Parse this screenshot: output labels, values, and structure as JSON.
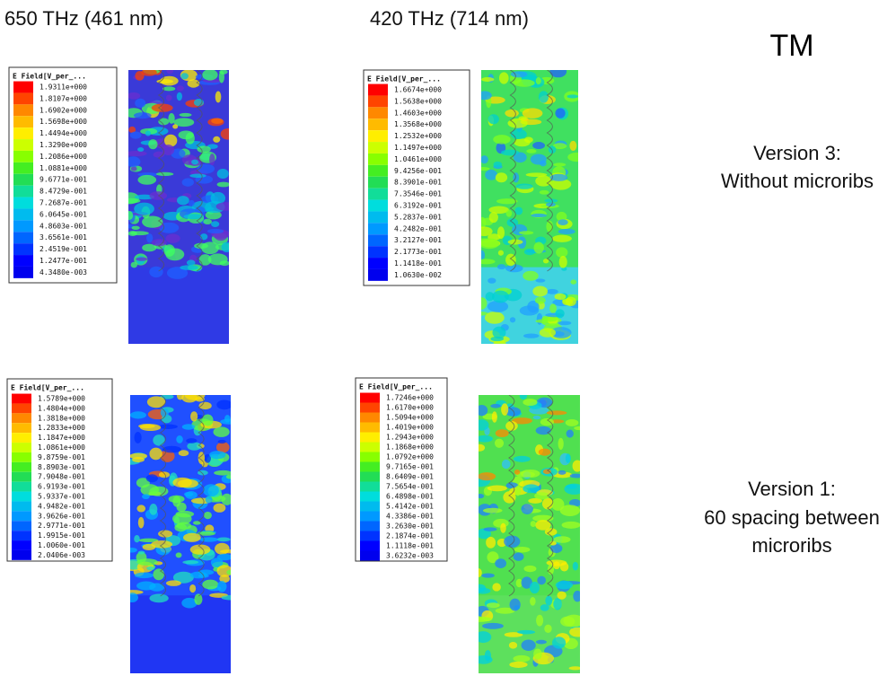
{
  "headers": [
    "650 THz   (461 nm)",
    "420 THz  (714 nm)"
  ],
  "mode": "TM",
  "versions": [
    {
      "lines": [
        "Version 3:",
        "Without microribs"
      ]
    },
    {
      "lines": [
        "Version 1:",
        "60 spacing between",
        "microribs"
      ]
    }
  ],
  "legends": [
    {
      "title": "E Field[V_per_...",
      "values": [
        "1.9311e+000",
        "1.8107e+000",
        "1.6902e+000",
        "1.5698e+000",
        "1.4494e+000",
        "1.3290e+000",
        "1.2086e+000",
        "1.0881e+000",
        "9.6771e-001",
        "8.4729e-001",
        "7.2687e-001",
        "6.0645e-001",
        "4.8603e-001",
        "3.6561e-001",
        "2.4519e-001",
        "1.2477e-001",
        "4.3480e-003"
      ]
    },
    {
      "title": "E Field[V_per_...",
      "values": [
        "1.6674e+000",
        "1.5638e+000",
        "1.4603e+000",
        "1.3568e+000",
        "1.2532e+000",
        "1.1497e+000",
        "1.0461e+000",
        "9.4256e-001",
        "8.3901e-001",
        "7.3546e-001",
        "6.3192e-001",
        "5.2837e-001",
        "4.2482e-001",
        "3.2127e-001",
        "2.1773e-001",
        "1.1418e-001",
        "1.0630e-002"
      ]
    },
    {
      "title": "E Field[V_per_...",
      "values": [
        "1.5789e+000",
        "1.4804e+000",
        "1.3818e+000",
        "1.2833e+000",
        "1.1847e+000",
        "1.0861e+000",
        "9.8759e-001",
        "8.8903e-001",
        "7.9048e-001",
        "6.9193e-001",
        "5.9337e-001",
        "4.9482e-001",
        "3.9626e-001",
        "2.9771e-001",
        "1.9915e-001",
        "1.0060e-001",
        "2.0406e-003"
      ]
    },
    {
      "title": "E Field[V_per_...",
      "values": [
        "1.7246e+000",
        "1.6170e+000",
        "1.5094e+000",
        "1.4019e+000",
        "1.2943e+000",
        "1.1868e+000",
        "1.0792e+000",
        "9.7165e-001",
        "8.6409e-001",
        "7.5654e-001",
        "6.4898e-001",
        "5.4142e-001",
        "4.3386e-001",
        "3.2630e-001",
        "2.1874e-001",
        "1.1118e-001",
        "3.6232e-003"
      ]
    }
  ]
}
